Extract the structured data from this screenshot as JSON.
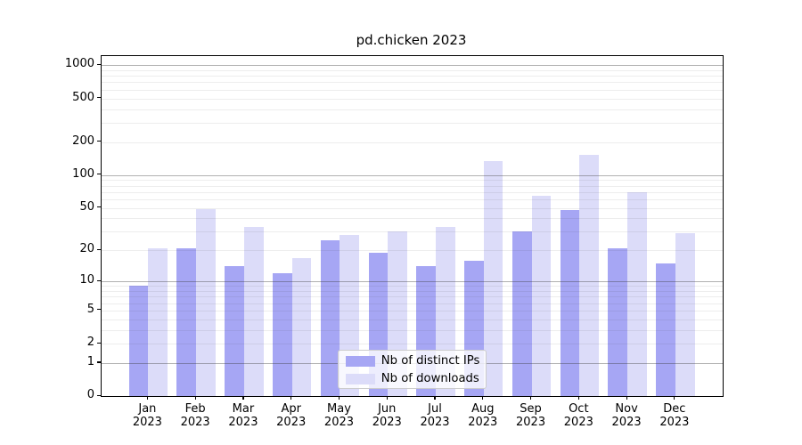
{
  "title": "pd.chicken 2023",
  "chart_data": {
    "type": "bar",
    "title": "pd.chicken 2023",
    "categories": [
      "Jan 2023",
      "Feb 2023",
      "Mar 2023",
      "Apr 2023",
      "May 2023",
      "Jun 2023",
      "Jul 2023",
      "Aug 2023",
      "Sep 2023",
      "Oct 2023",
      "Nov 2023",
      "Dec 2023"
    ],
    "series": [
      {
        "name": "Nb of distinct IPs",
        "color": "#a6a6f4",
        "values": [
          9,
          21,
          14,
          12,
          25,
          19,
          14,
          16,
          30,
          48,
          21,
          15
        ]
      },
      {
        "name": "Nb of downloads",
        "color": "#dcdcf9",
        "values": [
          21,
          49,
          33,
          17,
          28,
          30,
          33,
          134,
          65,
          152,
          70,
          29
        ]
      }
    ],
    "xlabel": "",
    "ylabel": "",
    "yscale": "log(1+x)",
    "yticks": [
      0,
      1,
      2,
      5,
      10,
      20,
      50,
      100,
      200,
      500,
      1000
    ],
    "ylim": [
      0,
      1280
    ],
    "grid": true,
    "grid_above_bars": true,
    "legend_position": "lower center inside"
  },
  "colors": {
    "distinct_ips": "#a6a6f4",
    "downloads": "#dcdcf9",
    "major_grid": "#b1b1b1",
    "minor_grid": "#ededed",
    "spine": "#000000",
    "legend_border": "#cccccc"
  }
}
